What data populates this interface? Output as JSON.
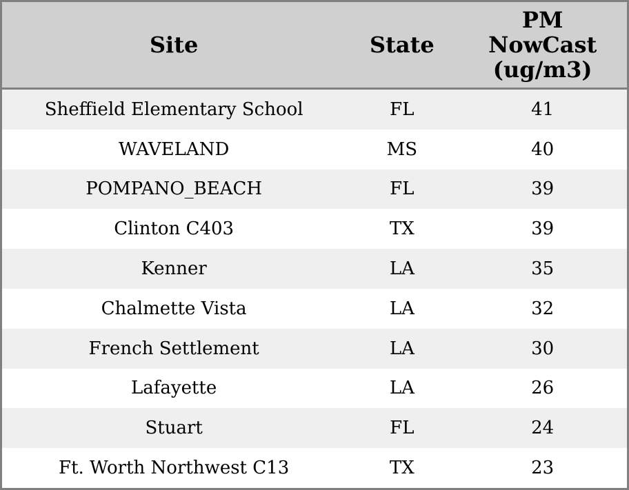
{
  "chart_data": {
    "type": "table",
    "title": "",
    "columns": [
      "Site",
      "State",
      "PM NowCast (ug/m3)"
    ],
    "rows": [
      [
        "Sheffield Elementary School",
        "FL",
        41
      ],
      [
        "WAVELAND",
        "MS",
        40
      ],
      [
        "POMPANO_BEACH",
        "FL",
        39
      ],
      [
        "Clinton C403",
        "TX",
        39
      ],
      [
        "Kenner",
        "LA",
        35
      ],
      [
        "Chalmette Vista",
        "LA",
        32
      ],
      [
        "French Settlement",
        "LA",
        30
      ],
      [
        "Lafayette",
        "LA",
        26
      ],
      [
        "Stuart",
        "FL",
        24
      ],
      [
        "Ft. Worth Northwest C13",
        "TX",
        23
      ]
    ]
  },
  "colors": {
    "border": "#808080",
    "header_bg": "#d0d0d0",
    "row_alt_bg": "#efefef",
    "row_bg": "#ffffff",
    "text": "#000000"
  }
}
